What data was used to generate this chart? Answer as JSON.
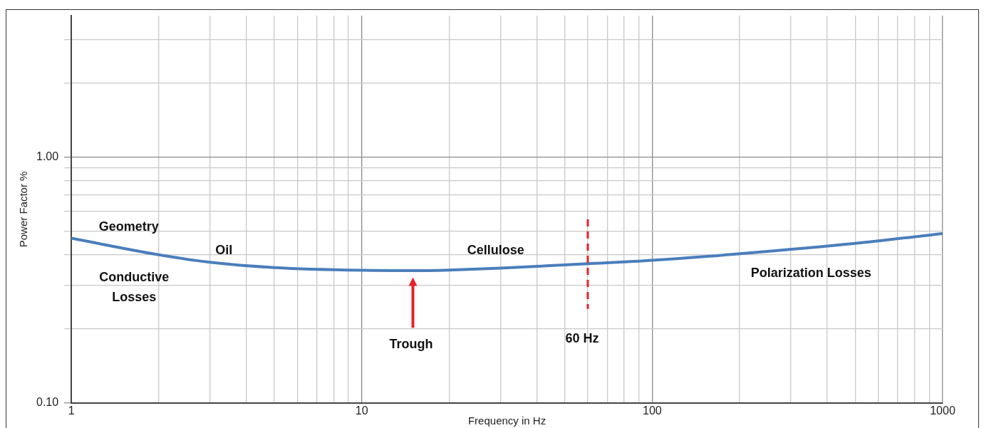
{
  "chart_data": {
    "type": "line",
    "xlabel": "Frequency in Hz",
    "ylabel": "Power Factor %",
    "log": "xy",
    "grid": true,
    "legend": false,
    "marker": "none",
    "line_style": "solid",
    "xlim": [
      1,
      1000
    ],
    "ylim": [
      0.1,
      3.75
    ],
    "xticks": [
      1,
      {
        "value": 2,
        "label": null
      },
      {
        "value": 3,
        "label": null
      },
      {
        "value": 4,
        "label": null
      },
      {
        "value": 5,
        "label": null
      },
      {
        "value": 6,
        "label": null
      },
      {
        "value": 7,
        "label": null
      },
      {
        "value": 8,
        "label": null
      },
      {
        "value": 9,
        "label": null
      },
      10,
      {
        "value": 20,
        "label": null
      },
      {
        "value": 30,
        "label": null
      },
      {
        "value": 40,
        "label": null
      },
      {
        "value": 50,
        "label": null
      },
      {
        "value": 60,
        "label": null
      },
      {
        "value": 70,
        "label": null
      },
      {
        "value": 80,
        "label": null
      },
      {
        "value": 90,
        "label": null
      },
      100,
      {
        "value": 200,
        "label": null
      },
      {
        "value": 300,
        "label": null
      },
      {
        "value": 400,
        "label": null
      },
      {
        "value": 500,
        "label": null
      },
      {
        "value": 600,
        "label": null
      },
      {
        "value": 700,
        "label": null
      },
      {
        "value": 800,
        "label": null
      },
      {
        "value": 900,
        "label": null
      },
      1000
    ],
    "yticks": [
      {
        "value": 0.1,
        "label": "0.10"
      },
      {
        "value": 0.2,
        "label": null
      },
      {
        "value": 0.3,
        "label": null
      },
      {
        "value": 0.4,
        "label": null
      },
      {
        "value": 0.5,
        "label": null
      },
      {
        "value": 0.6,
        "label": null
      },
      {
        "value": 0.7,
        "label": null
      },
      {
        "value": 0.8,
        "label": null
      },
      {
        "value": 0.9,
        "label": null
      },
      {
        "value": 1,
        "label": "1.00"
      },
      {
        "value": 2,
        "label": null
      },
      {
        "value": 3,
        "label": null
      }
    ],
    "series": [
      {
        "color": "#4a7ebb",
        "x": [
          1,
          2,
          3,
          5,
          10,
          15,
          20,
          30,
          60,
          100,
          200,
          500,
          1000
        ],
        "values": [
          0.467,
          0.4,
          0.373,
          0.355,
          0.346,
          0.345,
          0.347,
          0.353,
          0.368,
          0.38,
          0.404,
          0.445,
          0.488
        ]
      }
    ],
    "ref_lines": [
      {
        "axis": "x",
        "value": 60,
        "label": "60 Hz",
        "color": "#e8202a",
        "line_style": "dashed"
      }
    ],
    "annotations": [
      "Geometry",
      "Oil",
      "Conductive\nLosses",
      "Cellulose",
      "Polarization Losses",
      "Trough"
    ]
  }
}
